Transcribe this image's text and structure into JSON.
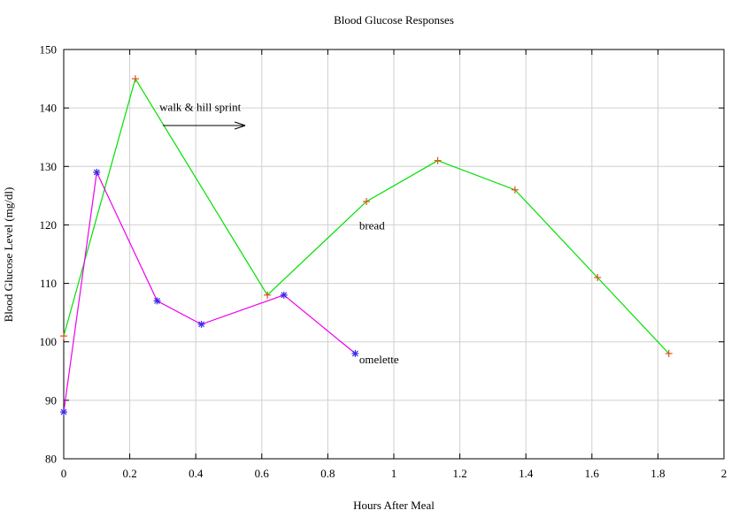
{
  "chart_data": {
    "type": "line",
    "title": "Blood Glucose Responses",
    "xlabel": "Hours After Meal",
    "ylabel": "Blood Glucose Level (mg/dl)",
    "xlim": [
      0,
      2
    ],
    "ylim": [
      80,
      150
    ],
    "xticks": [
      0,
      0.2,
      0.4,
      0.6,
      0.8,
      1,
      1.2,
      1.4,
      1.6,
      1.8,
      2
    ],
    "xtick_labels": [
      "0",
      "0.2",
      "0.4",
      "0.6",
      "0.8",
      "1",
      "1.2",
      "1.4",
      "1.6",
      "1.8",
      "2"
    ],
    "yticks": [
      80,
      90,
      100,
      110,
      120,
      130,
      140,
      150
    ],
    "ytick_labels": [
      "80",
      "90",
      "100",
      "110",
      "120",
      "130",
      "140",
      "150"
    ],
    "grid": true,
    "series": [
      {
        "name": "bread",
        "line_color": "#00e000",
        "marker": "plus",
        "marker_color": "#e0501a",
        "x": [
          0,
          0.217,
          0.617,
          0.917,
          1.133,
          1.367,
          1.617,
          1.833
        ],
        "y": [
          101,
          145,
          108,
          124,
          131,
          126,
          111,
          98
        ]
      },
      {
        "name": "omelette",
        "line_color": "#ee00ee",
        "marker": "star",
        "marker_color": "#3a2ae8",
        "x": [
          0,
          0.1,
          0.283,
          0.417,
          0.667,
          0.883
        ],
        "y": [
          88,
          129,
          107,
          103,
          108,
          98
        ]
      }
    ],
    "annotations": [
      {
        "text": "walk & hill sprint",
        "x": 0.29,
        "y": 139.5,
        "arrow_from": [
          0.3,
          137
        ],
        "arrow_to": [
          0.55,
          137
        ]
      },
      {
        "text": "bread",
        "x": 0.895,
        "y": 119.2
      },
      {
        "text": "omelette",
        "x": 0.895,
        "y": 96.3
      }
    ]
  }
}
